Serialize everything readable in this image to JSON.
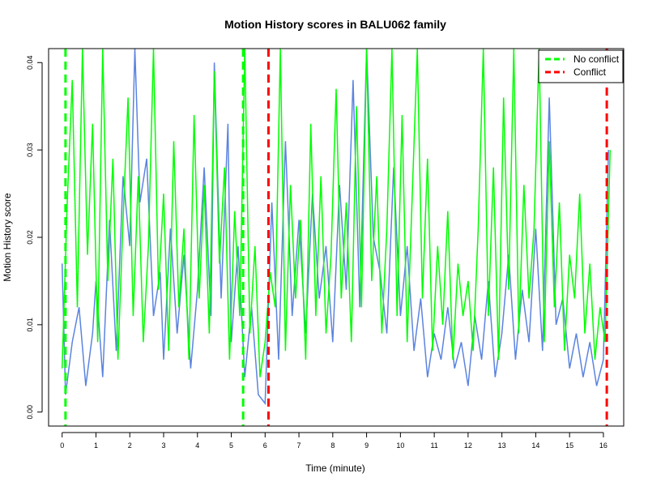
{
  "chart_data": {
    "type": "line",
    "title": "Motion History scores in BALU062 family",
    "xlabel": "Time (minute)",
    "ylabel": "Motion History score",
    "xlim": [
      -0.4,
      16.6
    ],
    "ylim": [
      -0.0016,
      0.0416
    ],
    "x_ticks": [
      0,
      1,
      2,
      3,
      4,
      5,
      6,
      7,
      8,
      9,
      10,
      11,
      12,
      13,
      14,
      15,
      16
    ],
    "x_tick_labels": [
      "0",
      "1",
      "2",
      "3",
      "4",
      "5",
      "6",
      "7",
      "8",
      "9",
      "10",
      "11",
      "12",
      "13",
      "14",
      "15",
      "16"
    ],
    "y_ticks": [
      0.0,
      0.01,
      0.02,
      0.03,
      0.04
    ],
    "y_tick_labels": [
      "0.00",
      "0.01",
      "0.02",
      "0.03",
      "0.04"
    ],
    "grid": false,
    "legend_position": "top-right",
    "legend": [
      {
        "label": "No conflict",
        "color": "#00ff00",
        "style": "dashed"
      },
      {
        "label": "Conflict",
        "color": "#ff0000",
        "style": "dashed"
      }
    ],
    "series": [
      {
        "color": "#5b84e0",
        "x": [
          0.0,
          0.1,
          0.3,
          0.5,
          0.7,
          0.9,
          1.0,
          1.2,
          1.4,
          1.6,
          1.8,
          2.0,
          2.15,
          2.3,
          2.5,
          2.7,
          2.9,
          3.0,
          3.2,
          3.4,
          3.6,
          3.8,
          4.0,
          4.2,
          4.4,
          4.5,
          4.7,
          4.9,
          5.0,
          5.2,
          5.4,
          5.6,
          5.8,
          6.0,
          6.2,
          6.4,
          6.6,
          6.8,
          7.0,
          7.2,
          7.4,
          7.6,
          7.8,
          8.0,
          8.2,
          8.4,
          8.6,
          8.8,
          9.0,
          9.2,
          9.4,
          9.6,
          9.8,
          10.0,
          10.2,
          10.4,
          10.6,
          10.8,
          11.0,
          11.2,
          11.4,
          11.6,
          11.8,
          12.0,
          12.2,
          12.4,
          12.6,
          12.8,
          13.0,
          13.2,
          13.4,
          13.6,
          13.8,
          14.0,
          14.2,
          14.4,
          14.6,
          14.8,
          15.0,
          15.2,
          15.4,
          15.6,
          15.8,
          16.0,
          16.15
        ],
        "y": [
          0.017,
          0.002,
          0.008,
          0.012,
          0.003,
          0.009,
          0.015,
          0.004,
          0.022,
          0.007,
          0.027,
          0.019,
          0.042,
          0.024,
          0.029,
          0.011,
          0.016,
          0.006,
          0.021,
          0.009,
          0.018,
          0.005,
          0.014,
          0.028,
          0.011,
          0.04,
          0.013,
          0.033,
          0.008,
          0.019,
          0.004,
          0.012,
          0.002,
          0.001,
          0.024,
          0.006,
          0.031,
          0.011,
          0.022,
          0.009,
          0.025,
          0.013,
          0.019,
          0.008,
          0.026,
          0.014,
          0.038,
          0.012,
          0.042,
          0.02,
          0.016,
          0.009,
          0.028,
          0.011,
          0.019,
          0.007,
          0.013,
          0.004,
          0.009,
          0.006,
          0.012,
          0.005,
          0.008,
          0.003,
          0.011,
          0.006,
          0.015,
          0.004,
          0.009,
          0.018,
          0.006,
          0.014,
          0.008,
          0.021,
          0.007,
          0.036,
          0.01,
          0.013,
          0.005,
          0.009,
          0.004,
          0.008,
          0.003,
          0.006,
          0.03
        ]
      },
      {
        "color": "#00ff00",
        "x": [
          0.0,
          0.15,
          0.3,
          0.45,
          0.6,
          0.75,
          0.9,
          1.05,
          1.2,
          1.35,
          1.5,
          1.65,
          1.8,
          1.95,
          2.1,
          2.25,
          2.4,
          2.55,
          2.7,
          2.85,
          3.0,
          3.15,
          3.3,
          3.45,
          3.6,
          3.75,
          3.9,
          4.05,
          4.2,
          4.35,
          4.5,
          4.65,
          4.8,
          4.95,
          5.1,
          5.25,
          5.4,
          5.55,
          5.7,
          5.85,
          6.0,
          6.15,
          6.3,
          6.45,
          6.6,
          6.75,
          6.9,
          7.05,
          7.2,
          7.35,
          7.5,
          7.65,
          7.8,
          7.95,
          8.1,
          8.25,
          8.4,
          8.55,
          8.7,
          8.85,
          9.0,
          9.15,
          9.3,
          9.45,
          9.6,
          9.75,
          9.9,
          10.05,
          10.2,
          10.35,
          10.5,
          10.65,
          10.8,
          10.95,
          11.1,
          11.25,
          11.4,
          11.55,
          11.7,
          11.85,
          12.0,
          12.15,
          12.3,
          12.45,
          12.6,
          12.75,
          12.9,
          13.05,
          13.2,
          13.35,
          13.5,
          13.65,
          13.8,
          13.95,
          14.1,
          14.25,
          14.4,
          14.55,
          14.7,
          14.85,
          15.0,
          15.15,
          15.3,
          15.45,
          15.6,
          15.75,
          15.9,
          16.05,
          16.2
        ],
        "y": [
          0.005,
          0.024,
          0.038,
          0.012,
          0.042,
          0.018,
          0.033,
          0.008,
          0.042,
          0.015,
          0.029,
          0.006,
          0.022,
          0.036,
          0.011,
          0.027,
          0.008,
          0.019,
          0.042,
          0.014,
          0.025,
          0.007,
          0.031,
          0.012,
          0.021,
          0.006,
          0.034,
          0.013,
          0.026,
          0.009,
          0.039,
          0.017,
          0.028,
          0.006,
          0.023,
          0.011,
          0.042,
          0.009,
          0.019,
          0.004,
          0.008,
          0.016,
          0.012,
          0.042,
          0.007,
          0.026,
          0.013,
          0.022,
          0.006,
          0.033,
          0.011,
          0.027,
          0.009,
          0.018,
          0.037,
          0.013,
          0.024,
          0.008,
          0.035,
          0.012,
          0.042,
          0.015,
          0.027,
          0.009,
          0.021,
          0.042,
          0.011,
          0.034,
          0.008,
          0.025,
          0.042,
          0.013,
          0.029,
          0.007,
          0.019,
          0.01,
          0.023,
          0.006,
          0.017,
          0.011,
          0.015,
          0.007,
          0.021,
          0.042,
          0.011,
          0.028,
          0.006,
          0.036,
          0.014,
          0.042,
          0.009,
          0.026,
          0.013,
          0.021,
          0.042,
          0.008,
          0.031,
          0.012,
          0.024,
          0.007,
          0.018,
          0.013,
          0.025,
          0.009,
          0.017,
          0.006,
          0.012,
          0.008,
          0.03
        ]
      }
    ],
    "vertical_lines": [
      {
        "x": 0.1,
        "color": "#00ff00",
        "style": "dashed"
      },
      {
        "x": 5.35,
        "color": "#00ff00",
        "style": "dashed"
      },
      {
        "x": 6.1,
        "color": "#ff0000",
        "style": "dashed"
      },
      {
        "x": 16.1,
        "color": "#ff0000",
        "style": "dashed"
      }
    ]
  }
}
